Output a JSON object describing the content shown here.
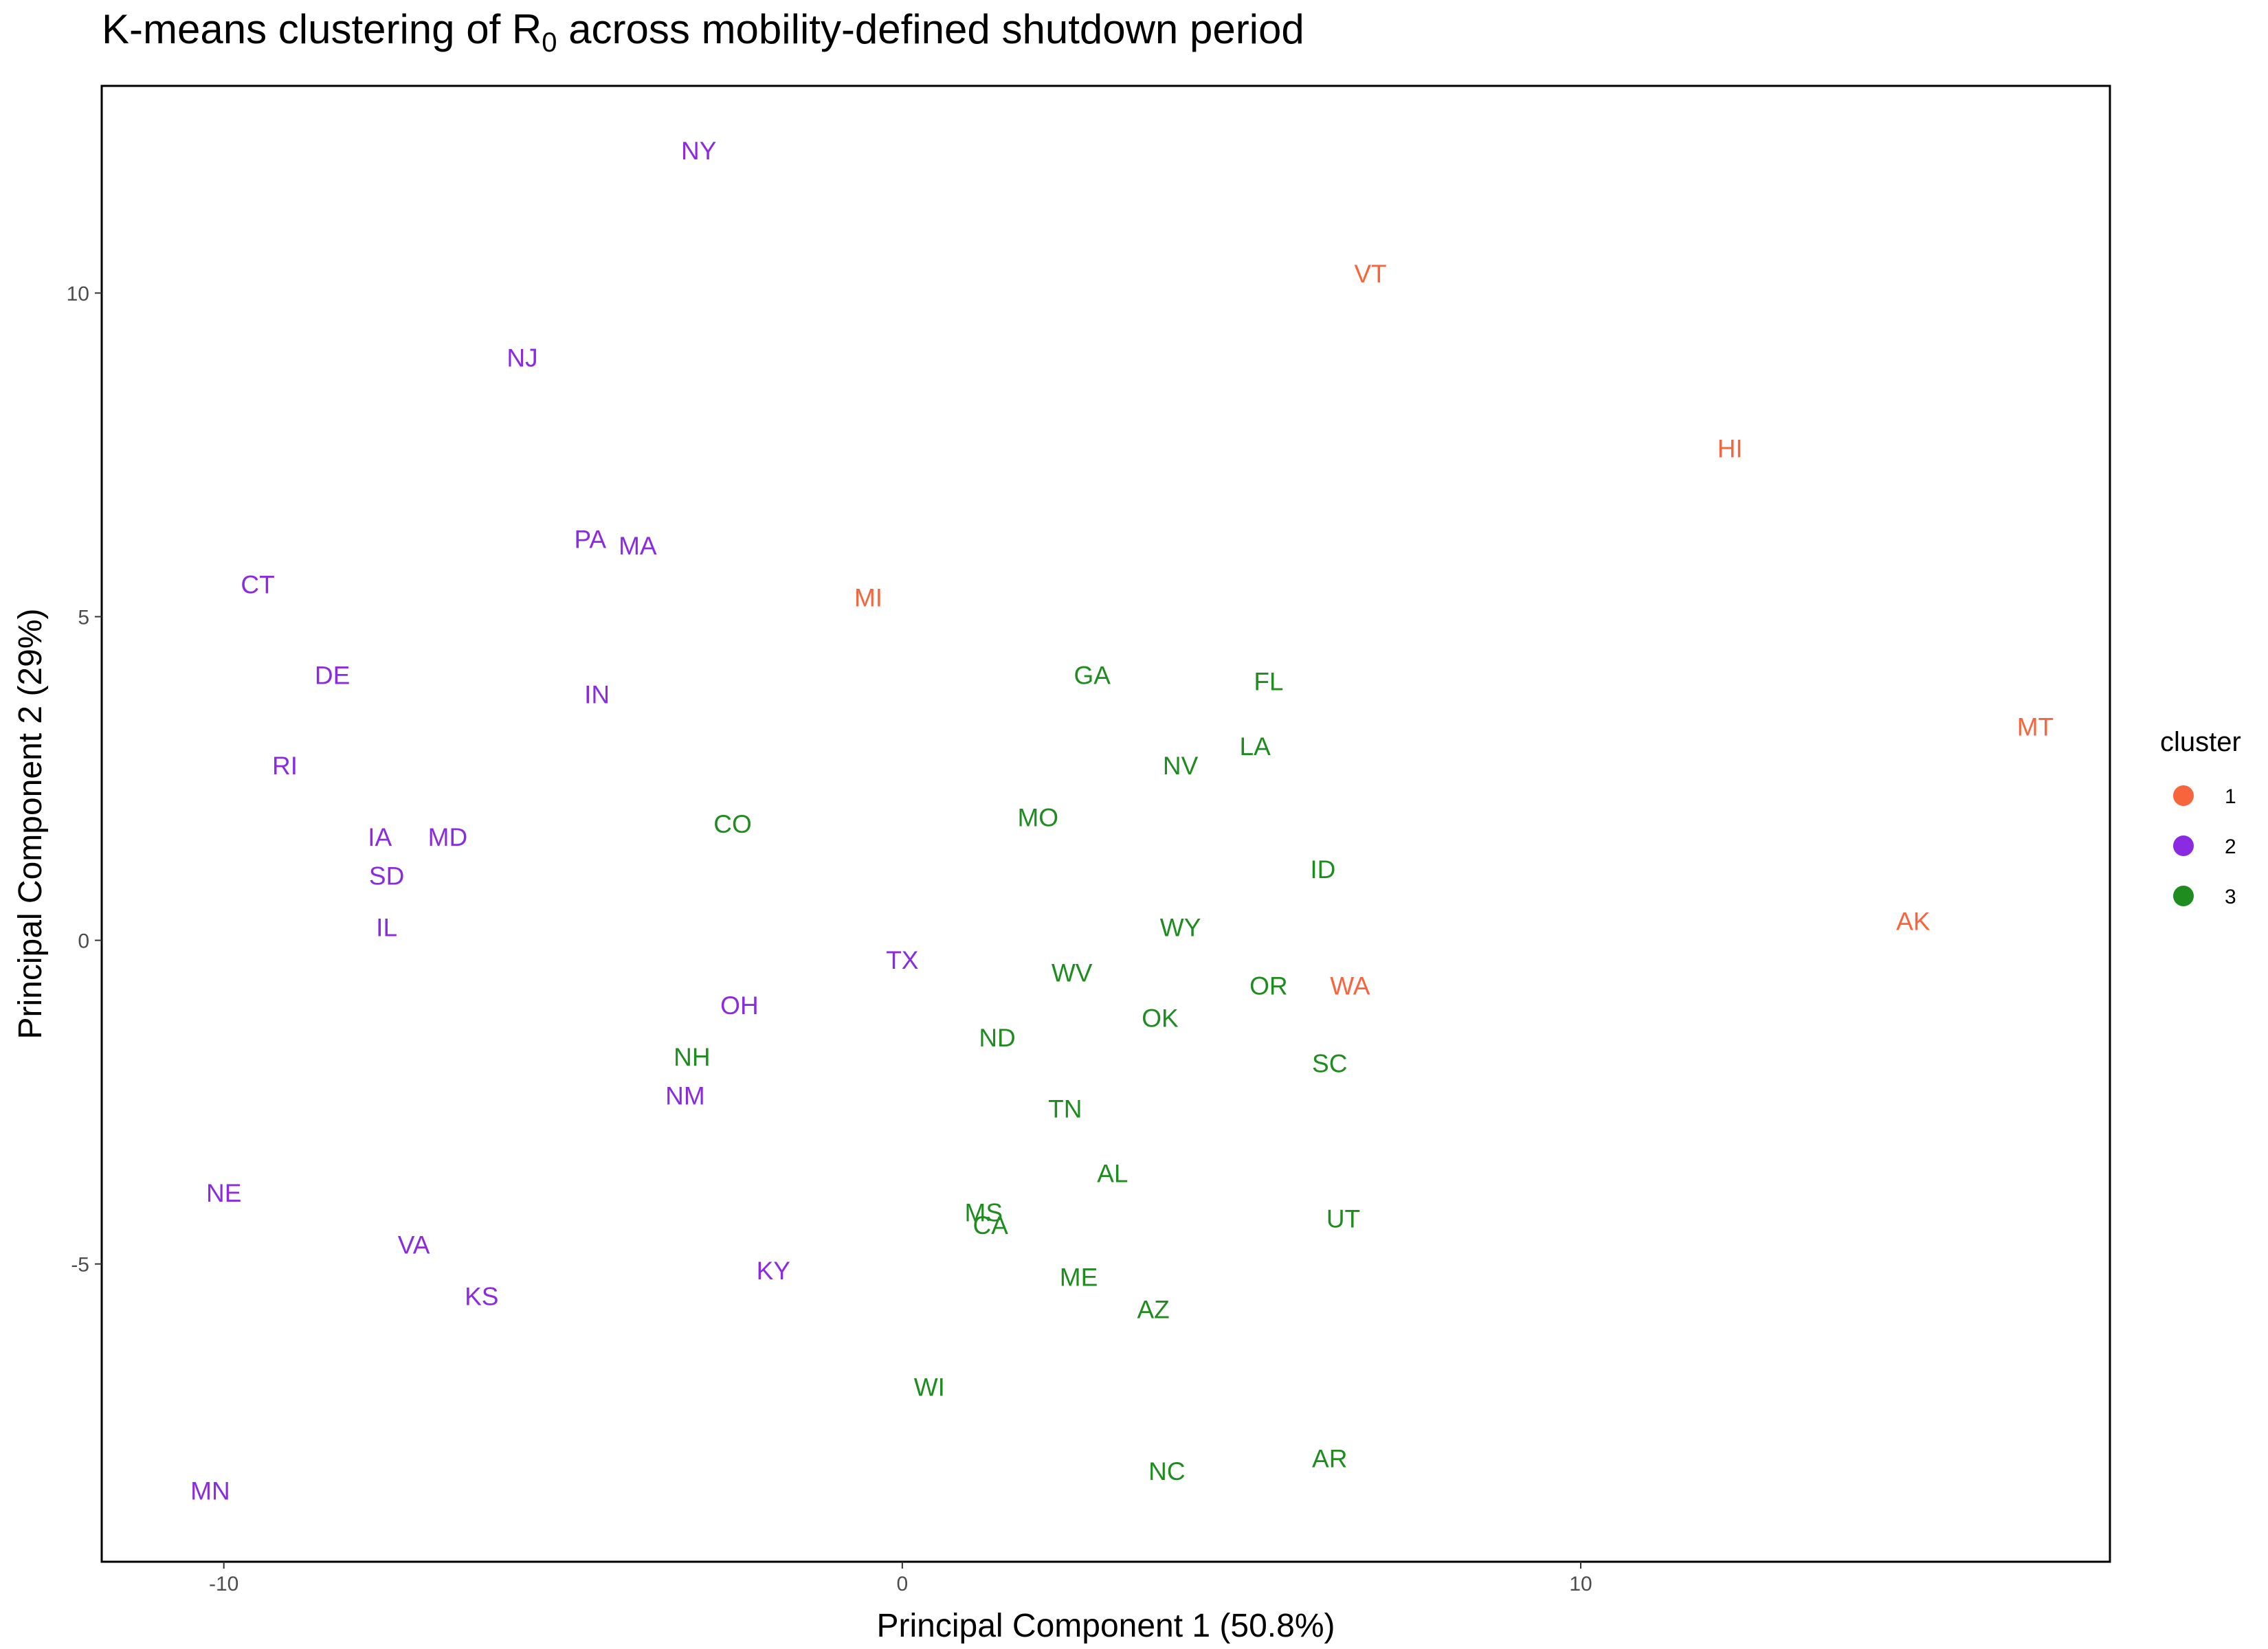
{
  "title_main": "K-means clustering of R",
  "title_sub": "0",
  "title_rest": " across mobility-defined shutdown period",
  "chart_data": {
    "type": "scatter",
    "title": "K-means clustering of R0 across mobility-defined shutdown period",
    "xlabel": "Principal Component 1 (50.8%)",
    "ylabel": "Principal Component 2 (29%)",
    "xlim": [
      -11.8,
      17.8
    ],
    "ylim": [
      -9.6,
      13.2
    ],
    "xticks": [
      -10,
      0,
      10
    ],
    "yticks": [
      -5,
      0,
      5,
      10
    ],
    "grid": false,
    "legend": {
      "title": "cluster",
      "position": "right",
      "entries": [
        {
          "label": "1",
          "color": "#F8643C"
        },
        {
          "label": "2",
          "color": "#8A2BE2"
        },
        {
          "label": "3",
          "color": "#1E8C1E"
        }
      ]
    },
    "points": [
      {
        "label": "NY",
        "x": -3.0,
        "y": 12.2,
        "cluster": "2"
      },
      {
        "label": "NJ",
        "x": -5.6,
        "y": 9.0,
        "cluster": "2"
      },
      {
        "label": "PA",
        "x": -4.6,
        "y": 6.2,
        "cluster": "2"
      },
      {
        "label": "MA",
        "x": -3.9,
        "y": 6.1,
        "cluster": "2"
      },
      {
        "label": "CT",
        "x": -9.5,
        "y": 5.5,
        "cluster": "2"
      },
      {
        "label": "DE",
        "x": -8.4,
        "y": 4.1,
        "cluster": "2"
      },
      {
        "label": "IN",
        "x": -4.5,
        "y": 3.8,
        "cluster": "2"
      },
      {
        "label": "RI",
        "x": -9.1,
        "y": 2.7,
        "cluster": "2"
      },
      {
        "label": "IA",
        "x": -7.7,
        "y": 1.6,
        "cluster": "2"
      },
      {
        "label": "MD",
        "x": -6.7,
        "y": 1.6,
        "cluster": "2"
      },
      {
        "label": "SD",
        "x": -7.6,
        "y": 1.0,
        "cluster": "2"
      },
      {
        "label": "IL",
        "x": -7.6,
        "y": 0.2,
        "cluster": "2"
      },
      {
        "label": "TX",
        "x": 0.0,
        "y": -0.3,
        "cluster": "2"
      },
      {
        "label": "OH",
        "x": -2.4,
        "y": -1.0,
        "cluster": "2"
      },
      {
        "label": "NM",
        "x": -3.2,
        "y": -2.4,
        "cluster": "2"
      },
      {
        "label": "NE",
        "x": -10.0,
        "y": -3.9,
        "cluster": "2"
      },
      {
        "label": "VA",
        "x": -7.2,
        "y": -4.7,
        "cluster": "2"
      },
      {
        "label": "KS",
        "x": -6.2,
        "y": -5.5,
        "cluster": "2"
      },
      {
        "label": "KY",
        "x": -1.9,
        "y": -5.1,
        "cluster": "2"
      },
      {
        "label": "MN",
        "x": -10.2,
        "y": -8.5,
        "cluster": "2"
      },
      {
        "label": "VT",
        "x": 6.9,
        "y": 10.3,
        "cluster": "1"
      },
      {
        "label": "HI",
        "x": 12.2,
        "y": 7.6,
        "cluster": "1"
      },
      {
        "label": "MI",
        "x": -0.5,
        "y": 5.3,
        "cluster": "1"
      },
      {
        "label": "MT",
        "x": 16.7,
        "y": 3.3,
        "cluster": "1"
      },
      {
        "label": "AK",
        "x": 14.9,
        "y": 0.3,
        "cluster": "1"
      },
      {
        "label": "WA",
        "x": 6.6,
        "y": -0.7,
        "cluster": "1"
      },
      {
        "label": "GA",
        "x": 2.8,
        "y": 4.1,
        "cluster": "3"
      },
      {
        "label": "FL",
        "x": 5.4,
        "y": 4.0,
        "cluster": "3"
      },
      {
        "label": "LA",
        "x": 5.2,
        "y": 3.0,
        "cluster": "3"
      },
      {
        "label": "NV",
        "x": 4.1,
        "y": 2.7,
        "cluster": "3"
      },
      {
        "label": "CO",
        "x": -2.5,
        "y": 1.8,
        "cluster": "3"
      },
      {
        "label": "MO",
        "x": 2.0,
        "y": 1.9,
        "cluster": "3"
      },
      {
        "label": "ID",
        "x": 6.2,
        "y": 1.1,
        "cluster": "3"
      },
      {
        "label": "WY",
        "x": 4.1,
        "y": 0.2,
        "cluster": "3"
      },
      {
        "label": "WV",
        "x": 2.5,
        "y": -0.5,
        "cluster": "3"
      },
      {
        "label": "OR",
        "x": 5.4,
        "y": -0.7,
        "cluster": "3"
      },
      {
        "label": "OK",
        "x": 3.8,
        "y": -1.2,
        "cluster": "3"
      },
      {
        "label": "ND",
        "x": 1.4,
        "y": -1.5,
        "cluster": "3"
      },
      {
        "label": "NH",
        "x": -3.1,
        "y": -1.8,
        "cluster": "3"
      },
      {
        "label": "SC",
        "x": 6.3,
        "y": -1.9,
        "cluster": "3"
      },
      {
        "label": "TN",
        "x": 2.4,
        "y": -2.6,
        "cluster": "3"
      },
      {
        "label": "AL",
        "x": 3.1,
        "y": -3.6,
        "cluster": "3"
      },
      {
        "label": "MS",
        "x": 1.2,
        "y": -4.2,
        "cluster": "3"
      },
      {
        "label": "CA",
        "x": 1.3,
        "y": -4.4,
        "cluster": "3"
      },
      {
        "label": "UT",
        "x": 6.5,
        "y": -4.3,
        "cluster": "3"
      },
      {
        "label": "ME",
        "x": 2.6,
        "y": -5.2,
        "cluster": "3"
      },
      {
        "label": "AZ",
        "x": 3.7,
        "y": -5.7,
        "cluster": "3"
      },
      {
        "label": "WI",
        "x": 0.4,
        "y": -6.9,
        "cluster": "3"
      },
      {
        "label": "NC",
        "x": 3.9,
        "y": -8.2,
        "cluster": "3"
      },
      {
        "label": "AR",
        "x": 6.3,
        "y": -8.0,
        "cluster": "3"
      }
    ]
  }
}
